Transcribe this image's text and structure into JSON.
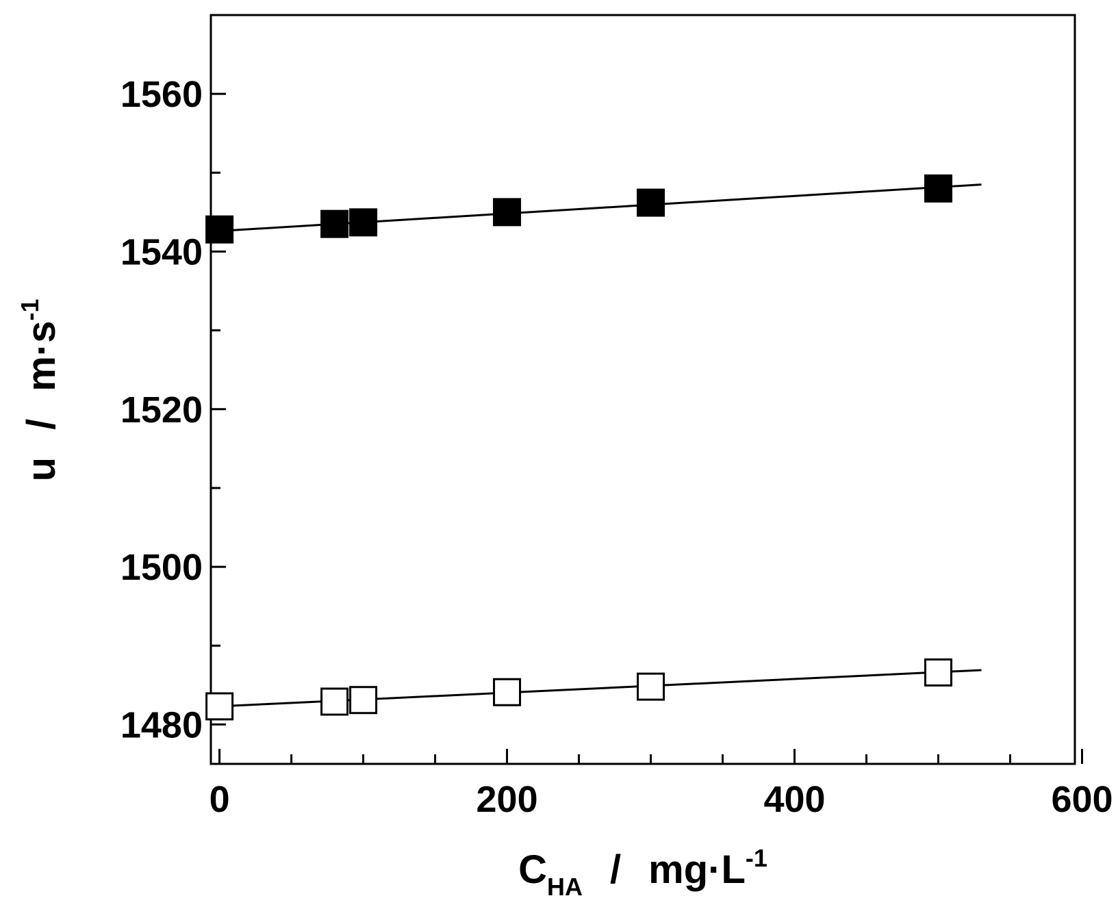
{
  "chart_data": {
    "type": "scatter",
    "title": "",
    "xlabel": {
      "main": "C",
      "sub": "HA",
      "sep": "/",
      "unit": "mg·L",
      "unit_sup": "-1"
    },
    "ylabel": {
      "main": "u",
      "sep": "/",
      "unit": "m·s",
      "unit_sup": "-1"
    },
    "xlim": [
      -6,
      595
    ],
    "ylim": [
      1475,
      1570
    ],
    "xticks": [
      0,
      200,
      400,
      600
    ],
    "xticks_minor": [
      50,
      100,
      150,
      250,
      300,
      350,
      450,
      500,
      550
    ],
    "yticks": [
      1480,
      1500,
      1520,
      1540,
      1560
    ],
    "yticks_minor": [
      1490,
      1510,
      1530,
      1550
    ],
    "grid": false,
    "series": [
      {
        "marker": "filled-square",
        "x": [
          0,
          80,
          100,
          200,
          300,
          500
        ],
        "y": [
          1542.8,
          1543.5,
          1543.7,
          1545.0,
          1546.2,
          1548.0
        ],
        "fit": {
          "x": [
            0,
            530
          ],
          "y": [
            1542.6,
            1548.5
          ]
        }
      },
      {
        "marker": "open-square",
        "x": [
          0,
          80,
          100,
          200,
          300,
          500
        ],
        "y": [
          1482.3,
          1482.9,
          1483.1,
          1484.1,
          1484.8,
          1486.6
        ],
        "fit": {
          "x": [
            0,
            530
          ],
          "y": [
            1482.3,
            1486.9
          ]
        }
      }
    ]
  }
}
